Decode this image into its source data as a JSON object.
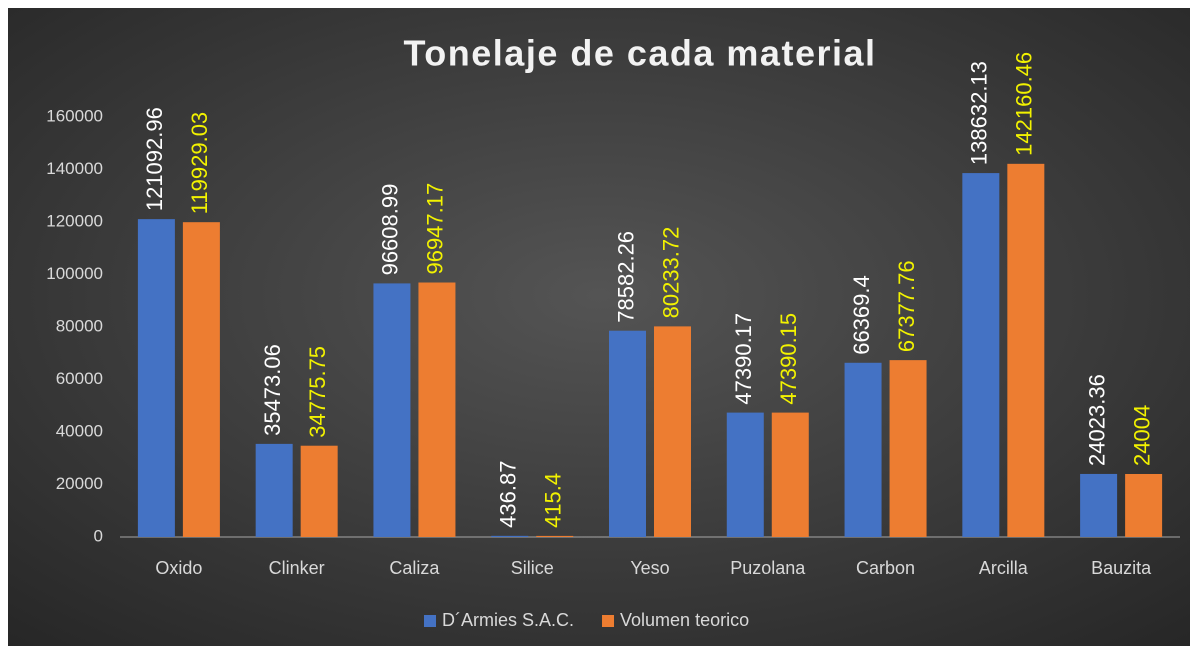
{
  "chart_data": {
    "type": "bar",
    "title": "Tonelaje de cada material",
    "categories": [
      "Oxido",
      "Clinker",
      "Caliza",
      "Silice",
      "Yeso",
      "Puzolana",
      "Carbon",
      "Arcilla",
      "Bauzita"
    ],
    "series": [
      {
        "name": "D´Armies S.A.C.",
        "color": "#4472c4",
        "label_color": "#ffffff",
        "values": [
          121092.96,
          35473.06,
          96608.99,
          436.87,
          78582.26,
          47390.17,
          66369.4,
          138632.13,
          24023.36
        ]
      },
      {
        "name": "Volumen teorico",
        "color": "#ed7d31",
        "label_color": "#f2f200",
        "values": [
          119929.03,
          34775.75,
          96947.17,
          415.4,
          80233.72,
          47390.15,
          67377.76,
          142160.46,
          24004
        ]
      }
    ],
    "ylim": [
      0,
      160000
    ],
    "yticks": [
      0,
      20000,
      40000,
      60000,
      80000,
      100000,
      120000,
      140000,
      160000
    ],
    "grid": false,
    "legend": "bottom"
  }
}
